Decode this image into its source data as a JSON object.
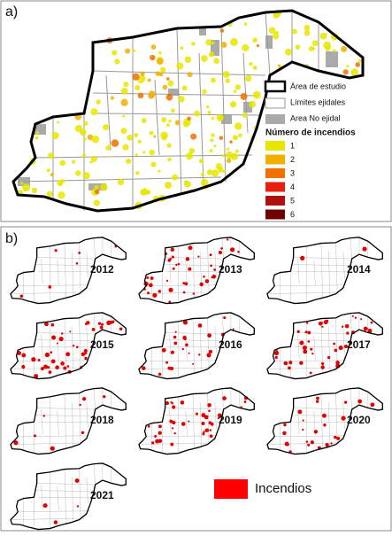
{
  "panel_a": {
    "label": "a)",
    "legend": {
      "items": [
        "Área de estudio",
        "Límites ejidales",
        "Area No ejidal"
      ],
      "count_title": "Número de incendios",
      "counts": [
        1,
        2,
        3,
        4,
        5,
        6
      ]
    }
  },
  "panel_b": {
    "label": "b)",
    "years": [
      "2012",
      "2013",
      "2014",
      "2015",
      "2016",
      "2017",
      "2018",
      "2019",
      "2020",
      "2021"
    ],
    "legend": "Incendios"
  }
}
